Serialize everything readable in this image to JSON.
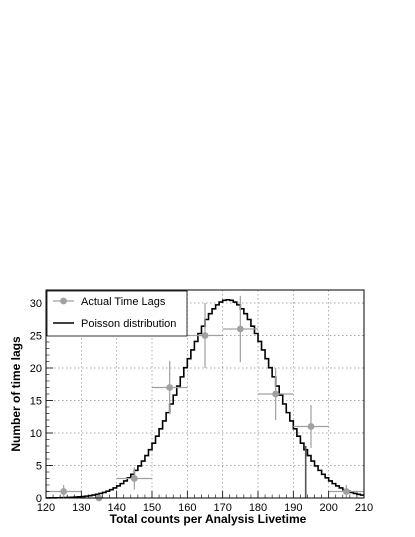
{
  "chart_data": {
    "type": "histogram-with-points",
    "title": "",
    "xlabel": "Total counts per Analysis Livetime",
    "ylabel": "Number of time lags",
    "xlim": [
      120,
      210
    ],
    "ylim": [
      0,
      32
    ],
    "x_ticks": [
      120,
      130,
      140,
      150,
      160,
      170,
      180,
      190,
      200,
      210
    ],
    "y_ticks": [
      0,
      5,
      10,
      15,
      20,
      25,
      30
    ],
    "grid": true,
    "legend_position": "top-left",
    "series": [
      {
        "name": "Actual Time Lags",
        "kind": "points-with-errors",
        "color": "#a0a0a0",
        "x": [
          125,
          135,
          145,
          155,
          165,
          175,
          185,
          195,
          205
        ],
        "x_err": [
          5,
          5,
          5,
          5,
          5,
          5,
          5,
          5,
          5
        ],
        "y": [
          1,
          0,
          3,
          17,
          25,
          26,
          16,
          11,
          1
        ],
        "y_err": [
          1,
          0,
          1.7,
          4.1,
          5,
          5.1,
          4,
          3.3,
          1
        ]
      },
      {
        "name": "Poisson distribution",
        "kind": "step",
        "color": "#000000",
        "mean": 171.5,
        "peak": 30.5,
        "bin_width": 1
      }
    ],
    "annotations": [
      {
        "type": "vertical-line",
        "x": 193.5,
        "y_from": 0,
        "y_to": 8,
        "color": "#555555"
      }
    ]
  }
}
